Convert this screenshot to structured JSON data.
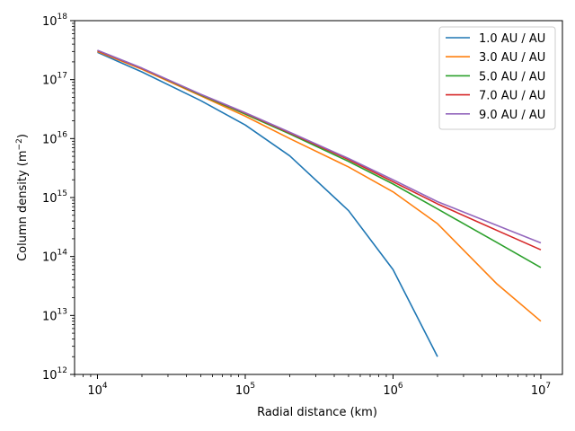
{
  "chart_data": {
    "type": "line",
    "title": "",
    "xlabel": "Radial distance (km)",
    "ylabel_main": "Column density (m",
    "ylabel_sup": "−2",
    "ylabel_end": ")",
    "xscale": "log",
    "yscale": "log",
    "xlim": [
      7000,
      14000000
    ],
    "ylim": [
      1000000000000.0,
      1e+18
    ],
    "x_ticks": [
      {
        "value": 10000,
        "base": "10",
        "exp": "4"
      },
      {
        "value": 100000,
        "base": "10",
        "exp": "5"
      },
      {
        "value": 1000000,
        "base": "10",
        "exp": "6"
      },
      {
        "value": 10000000,
        "base": "10",
        "exp": "7"
      }
    ],
    "y_ticks": [
      {
        "value": 1000000000000.0,
        "base": "10",
        "exp": "12"
      },
      {
        "value": 10000000000000.0,
        "base": "10",
        "exp": "13"
      },
      {
        "value": 100000000000000.0,
        "base": "10",
        "exp": "14"
      },
      {
        "value": 1000000000000000.0,
        "base": "10",
        "exp": "15"
      },
      {
        "value": 1e+16,
        "base": "10",
        "exp": "16"
      },
      {
        "value": 1e+17,
        "base": "10",
        "exp": "17"
      },
      {
        "value": 1e+18,
        "base": "10",
        "exp": "18"
      }
    ],
    "grid": false,
    "legend_position": "top-right",
    "x": [
      10000,
      20000,
      50000,
      100000,
      200000,
      500000,
      1000000,
      2000000,
      5000000,
      10000000
    ],
    "series": [
      {
        "name": "1.0 AU / AU",
        "color": "#1f77b4",
        "values": [
          2.9e+17,
          1.35e+17,
          4.4e+16,
          1.7e+16,
          5100000000000000.0,
          600000000000000.0,
          60000000000000.0,
          2000000000000.0,
          null,
          null
        ]
      },
      {
        "name": "3.0 AU / AU",
        "color": "#ff7f0e",
        "values": [
          3e+17,
          1.5e+17,
          5.3e+16,
          2.4e+16,
          1e+16,
          3300000000000000.0,
          1250000000000000.0,
          360000000000000.0,
          35000000000000.0,
          8000000000000.0
        ]
      },
      {
        "name": "5.0 AU / AU",
        "color": "#2ca02c",
        "values": [
          3.1e+17,
          1.55e+17,
          5.5e+16,
          2.6e+16,
          1.2e+16,
          4100000000000000.0,
          1700000000000000.0,
          640000000000000.0,
          175000000000000.0,
          65000000000000.0
        ]
      },
      {
        "name": "7.0 AU / AU",
        "color": "#d62728",
        "values": [
          3.1e+17,
          1.55e+17,
          5.6e+16,
          2.7e+16,
          1.25e+16,
          4400000000000000.0,
          1850000000000000.0,
          780000000000000.0,
          280000000000000.0,
          130000000000000.0
        ]
      },
      {
        "name": "9.0 AU / AU",
        "color": "#9467bd",
        "values": [
          3.15e+17,
          1.57e+17,
          5.65e+16,
          2.75e+16,
          1.28e+16,
          4600000000000000.0,
          2000000000000000.0,
          850000000000000.0,
          340000000000000.0,
          170000000000000.0
        ]
      }
    ]
  }
}
